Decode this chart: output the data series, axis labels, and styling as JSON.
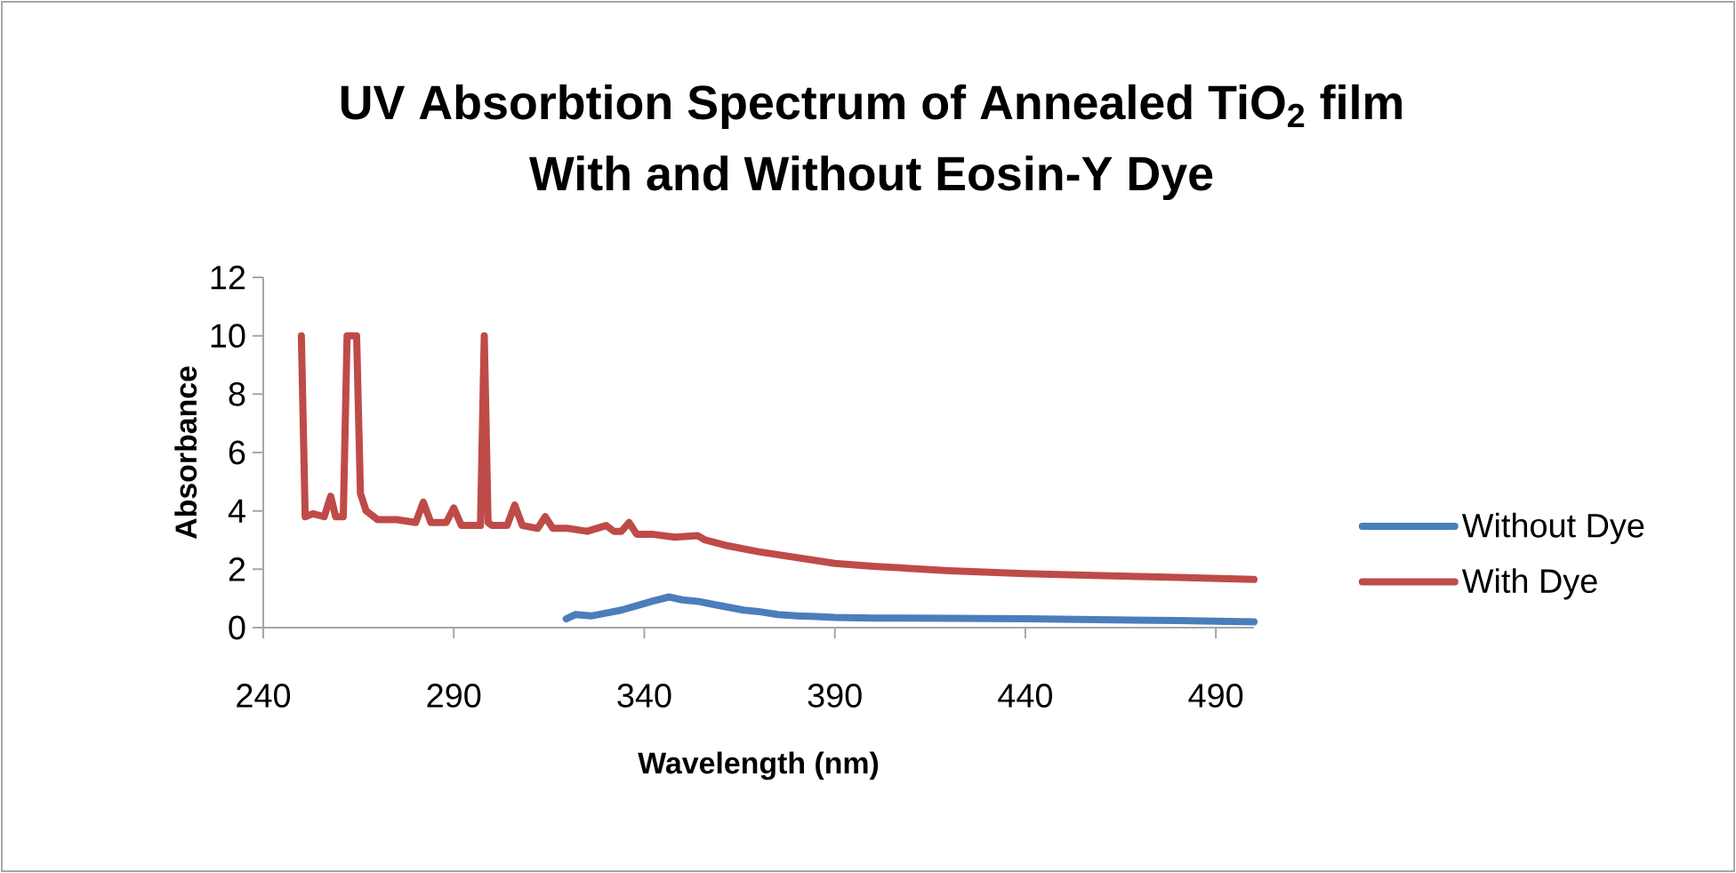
{
  "chart_data": {
    "type": "line",
    "title": "UV Absorbtion Spectrum of Annealed TiO$_{2}$ film",
    "subtitle": "With and Without Eosin-Y Dye",
    "xlabel": "Wavelength  (nm)",
    "ylabel": "Absorbance",
    "xlim": [
      240,
      500
    ],
    "xticks": [
      240,
      290,
      340,
      390,
      440,
      490
    ],
    "ylim": [
      0,
      12
    ],
    "yticks": [
      0,
      2,
      4,
      6,
      8,
      10,
      12
    ],
    "grid": false,
    "legend": "right",
    "marker": "none",
    "line_style": "solid",
    "series": [
      {
        "name": "Without Dye",
        "color": "#4a7ebb",
        "x": [
          319.5,
          322,
          326,
          330,
          334,
          338,
          342,
          346.5,
          350,
          354,
          358,
          362,
          366,
          370,
          375,
          380,
          385,
          390,
          400,
          420,
          440,
          460,
          480,
          500
        ],
        "values": [
          0.3,
          0.45,
          0.4,
          0.5,
          0.6,
          0.75,
          0.9,
          1.05,
          0.95,
          0.9,
          0.8,
          0.7,
          0.6,
          0.55,
          0.45,
          0.4,
          0.38,
          0.35,
          0.33,
          0.32,
          0.3,
          0.27,
          0.24,
          0.2
        ]
      },
      {
        "name": "With Dye",
        "color": "#be4b48",
        "x": [
          250,
          251,
          253,
          256,
          257.7,
          259,
          261,
          262,
          263,
          264.5,
          265.5,
          267,
          270,
          275,
          280,
          282,
          284,
          288,
          290,
          292,
          296,
          297,
          298,
          299,
          300,
          304,
          306,
          308,
          312,
          314,
          316,
          320,
          325,
          330,
          332,
          334,
          336,
          338,
          342,
          348,
          354,
          356,
          362,
          370,
          380,
          390,
          400,
          420,
          440,
          460,
          480,
          500
        ],
        "values": [
          10,
          3.8,
          3.9,
          3.8,
          4.5,
          3.8,
          3.8,
          10,
          10,
          10,
          4.6,
          4.0,
          3.7,
          3.7,
          3.6,
          4.3,
          3.6,
          3.6,
          4.1,
          3.5,
          3.5,
          3.5,
          10,
          3.6,
          3.5,
          3.5,
          4.2,
          3.5,
          3.4,
          3.8,
          3.4,
          3.4,
          3.3,
          3.5,
          3.3,
          3.3,
          3.6,
          3.2,
          3.2,
          3.1,
          3.15,
          3.0,
          2.8,
          2.6,
          2.4,
          2.2,
          2.1,
          1.95,
          1.85,
          1.78,
          1.72,
          1.65
        ]
      }
    ]
  }
}
